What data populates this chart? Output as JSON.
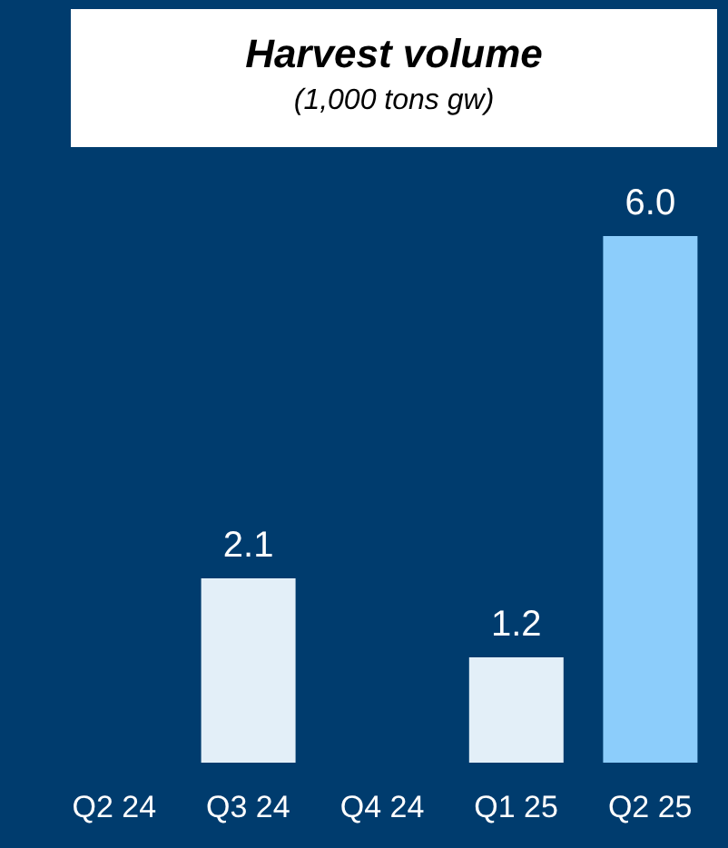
{
  "chart_data": {
    "type": "bar",
    "title": "Harvest volume",
    "subtitle": "(1,000 tons gw)",
    "categories": [
      "Q2 24",
      "Q3 24",
      "Q4 24",
      "Q1 25",
      "Q2 25"
    ],
    "values": [
      null,
      2.1,
      null,
      1.2,
      6.0
    ],
    "value_labels": [
      null,
      "2.1",
      null,
      "1.2",
      "6.0"
    ],
    "colors": [
      "#e3eff8",
      "#e3eff8",
      "#e3eff8",
      "#e3eff8",
      "#8ccdfb"
    ]
  }
}
